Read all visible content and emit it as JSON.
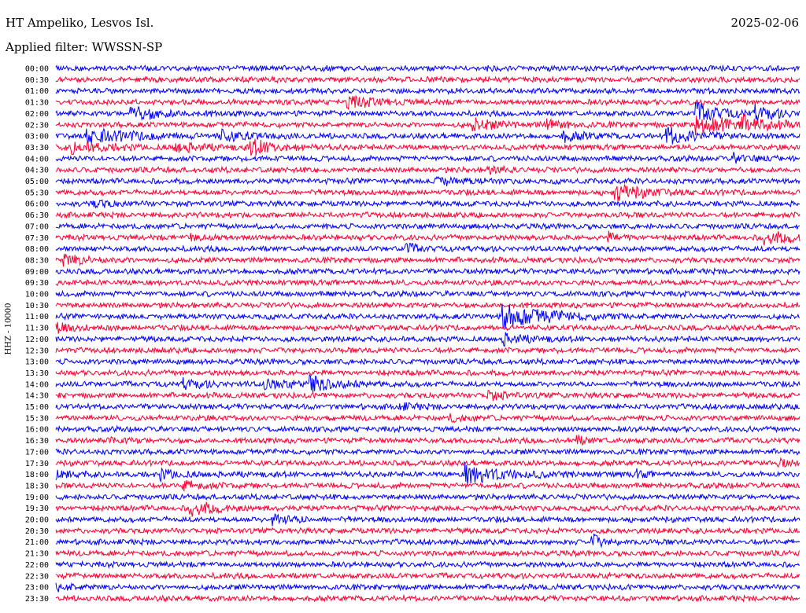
{
  "header": {
    "station": "HT Ampeliko, Lesvos Isl.",
    "date": "2025-02-06",
    "filter": "Applied filter: WWSSN-SP"
  },
  "chart_data": {
    "type": "line",
    "title": "HT Ampeliko, Lesvos Isl.",
    "ylabel": "HHZ - 10000",
    "xlabel": "",
    "colors": [
      "#0000ff",
      "#ff0033"
    ],
    "row_labels": [
      "00:00",
      "00:30",
      "01:00",
      "01:30",
      "02:00",
      "02:30",
      "03:00",
      "03:30",
      "04:00",
      "04:30",
      "05:00",
      "05:30",
      "06:00",
      "06:30",
      "07:00",
      "07:30",
      "08:00",
      "08:30",
      "09:00",
      "09:30",
      "10:00",
      "10:30",
      "11:00",
      "11:30",
      "12:00",
      "12:30",
      "13:00",
      "13:30",
      "14:00",
      "14:30",
      "15:00",
      "15:30",
      "16:00",
      "16:30",
      "17:00",
      "17:30",
      "18:00",
      "18:30",
      "19:00",
      "19:30",
      "20:00",
      "20:30",
      "21:00",
      "21:30",
      "22:00",
      "22:30",
      "23:00",
      "23:30"
    ],
    "events": [
      {
        "row": 0,
        "x": 0.36,
        "amp": 0.5,
        "dur": 0.01
      },
      {
        "row": 0,
        "x": 0.58,
        "amp": 0.4,
        "dur": 0.01
      },
      {
        "row": 3,
        "x": 0.39,
        "amp": 1.2,
        "dur": 0.06
      },
      {
        "row": 4,
        "x": 0.1,
        "amp": 1.4,
        "dur": 0.07
      },
      {
        "row": 4,
        "x": 0.86,
        "amp": 1.8,
        "dur": 0.06
      },
      {
        "row": 4,
        "x": 0.94,
        "amp": 1.2,
        "dur": 0.05
      },
      {
        "row": 5,
        "x": 0.56,
        "amp": 1.2,
        "dur": 0.05
      },
      {
        "row": 5,
        "x": 0.66,
        "amp": 0.8,
        "dur": 0.05
      },
      {
        "row": 5,
        "x": 0.86,
        "amp": 2.0,
        "dur": 0.1
      },
      {
        "row": 5,
        "x": 0.92,
        "amp": 1.0,
        "dur": 0.05
      },
      {
        "row": 6,
        "x": 0.04,
        "amp": 1.3,
        "dur": 0.12
      },
      {
        "row": 6,
        "x": 0.22,
        "amp": 1.0,
        "dur": 0.06
      },
      {
        "row": 6,
        "x": 0.68,
        "amp": 1.0,
        "dur": 0.05
      },
      {
        "row": 6,
        "x": 0.82,
        "amp": 1.5,
        "dur": 0.07
      },
      {
        "row": 7,
        "x": 0.02,
        "amp": 1.0,
        "dur": 0.08
      },
      {
        "row": 7,
        "x": 0.16,
        "amp": 1.0,
        "dur": 0.05
      },
      {
        "row": 7,
        "x": 0.26,
        "amp": 1.6,
        "dur": 0.05
      },
      {
        "row": 8,
        "x": 0.91,
        "amp": 0.8,
        "dur": 0.04
      },
      {
        "row": 9,
        "x": 0.58,
        "amp": 0.7,
        "dur": 0.03
      },
      {
        "row": 10,
        "x": 0.51,
        "amp": 0.9,
        "dur": 0.05
      },
      {
        "row": 11,
        "x": 0.75,
        "amp": 1.8,
        "dur": 0.06
      },
      {
        "row": 12,
        "x": 0.05,
        "amp": 0.7,
        "dur": 0.04
      },
      {
        "row": 15,
        "x": 0.18,
        "amp": 1.0,
        "dur": 0.03
      },
      {
        "row": 15,
        "x": 0.74,
        "amp": 0.9,
        "dur": 0.03
      },
      {
        "row": 15,
        "x": 0.95,
        "amp": 1.4,
        "dur": 0.06
      },
      {
        "row": 16,
        "x": 0.47,
        "amp": 0.9,
        "dur": 0.03
      },
      {
        "row": 17,
        "x": 0.01,
        "amp": 1.2,
        "dur": 0.05
      },
      {
        "row": 22,
        "x": 0.6,
        "amp": 2.6,
        "dur": 0.1
      },
      {
        "row": 23,
        "x": 0.0,
        "amp": 0.8,
        "dur": 0.04
      },
      {
        "row": 24,
        "x": 0.6,
        "amp": 1.0,
        "dur": 0.05
      },
      {
        "row": 28,
        "x": 0.17,
        "amp": 0.8,
        "dur": 0.05
      },
      {
        "row": 28,
        "x": 0.28,
        "amp": 1.0,
        "dur": 0.05
      },
      {
        "row": 28,
        "x": 0.34,
        "amp": 1.4,
        "dur": 0.06
      },
      {
        "row": 29,
        "x": 0.58,
        "amp": 0.9,
        "dur": 0.04
      },
      {
        "row": 30,
        "x": 0.46,
        "amp": 0.6,
        "dur": 0.04
      },
      {
        "row": 31,
        "x": 0.53,
        "amp": 0.7,
        "dur": 0.03
      },
      {
        "row": 33,
        "x": 0.07,
        "amp": 0.6,
        "dur": 0.04
      },
      {
        "row": 33,
        "x": 0.7,
        "amp": 0.7,
        "dur": 0.03
      },
      {
        "row": 35,
        "x": 0.97,
        "amp": 0.7,
        "dur": 0.03
      },
      {
        "row": 36,
        "x": 0.0,
        "amp": 0.6,
        "dur": 0.04
      },
      {
        "row": 36,
        "x": 0.14,
        "amp": 0.9,
        "dur": 0.05
      },
      {
        "row": 36,
        "x": 0.55,
        "amp": 2.0,
        "dur": 0.08
      },
      {
        "row": 36,
        "x": 0.78,
        "amp": 0.7,
        "dur": 0.02
      },
      {
        "row": 37,
        "x": 0.17,
        "amp": 0.8,
        "dur": 0.05
      },
      {
        "row": 39,
        "x": 0.18,
        "amp": 1.6,
        "dur": 0.05
      },
      {
        "row": 40,
        "x": 0.29,
        "amp": 1.0,
        "dur": 0.05
      },
      {
        "row": 42,
        "x": 0.72,
        "amp": 1.8,
        "dur": 0.02
      },
      {
        "row": 46,
        "x": 0.0,
        "amp": 0.8,
        "dur": 0.04
      }
    ]
  }
}
